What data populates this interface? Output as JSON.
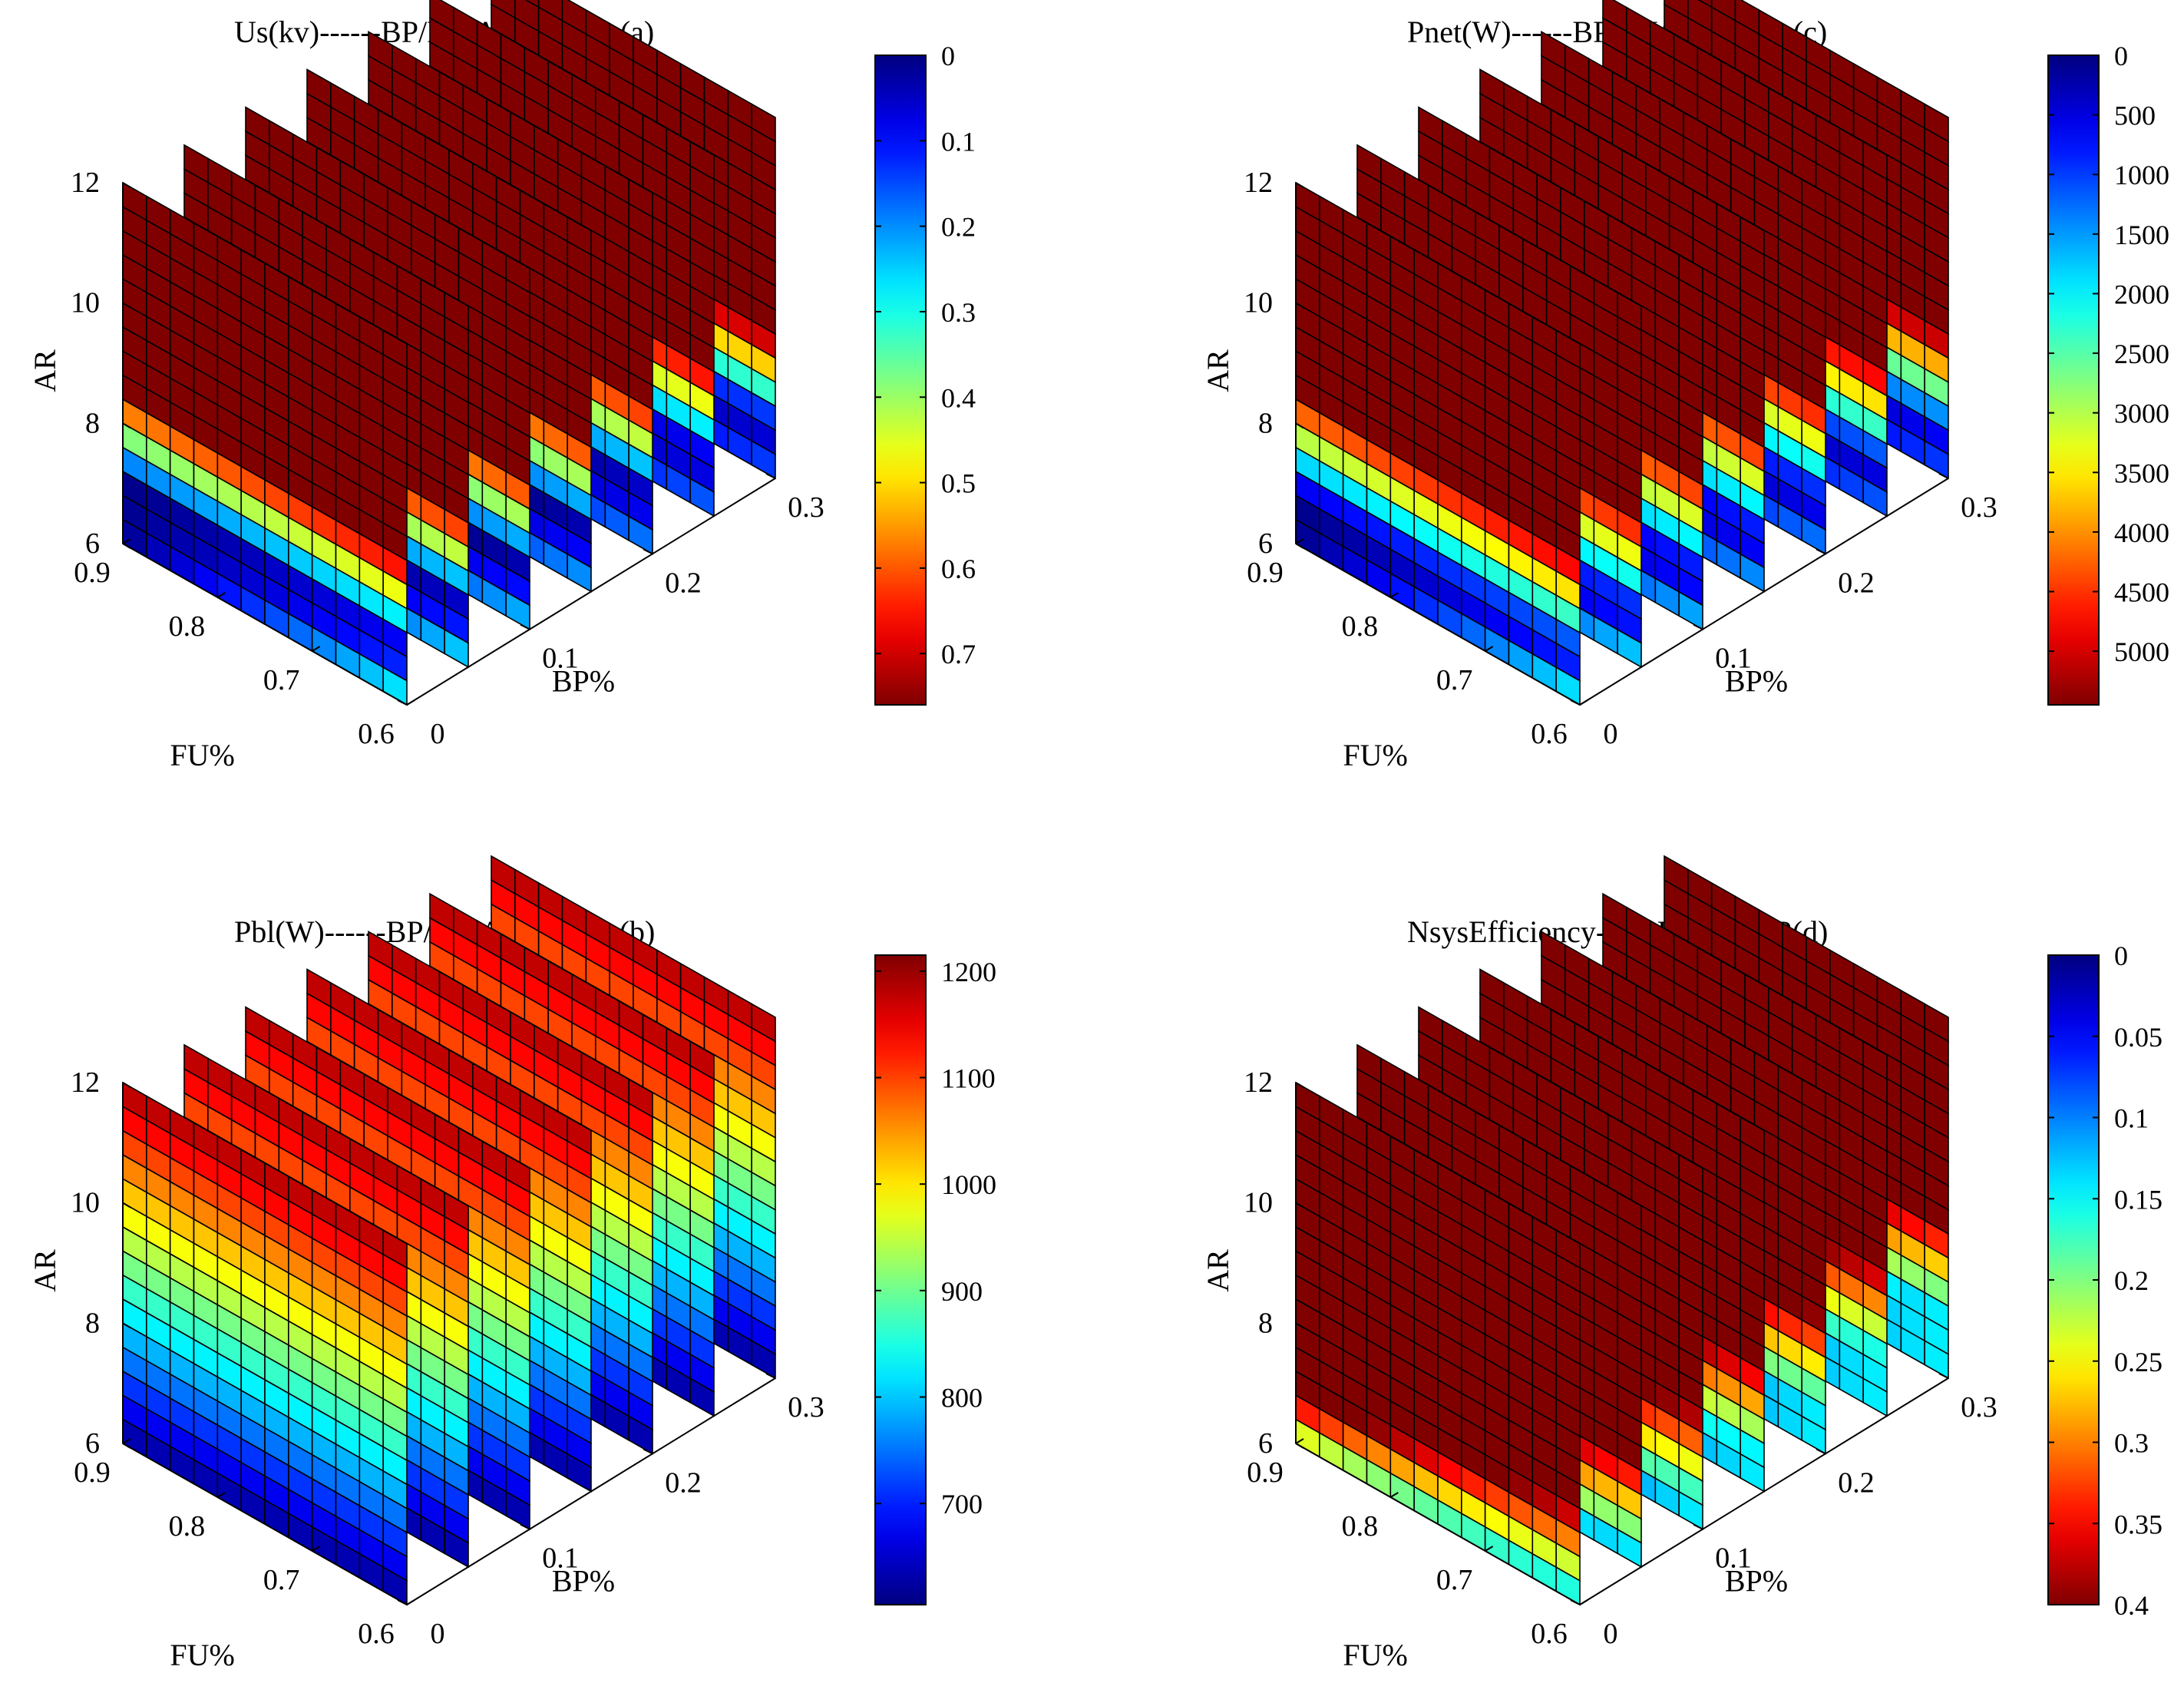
{
  "figure": {
    "panel_order": [
      "a",
      "c",
      "b",
      "d"
    ]
  },
  "chart_data": [
    {
      "id": "a",
      "type": "slice3d",
      "title": "Us(kv)------BP/FU/AR",
      "panel_label": "(a)",
      "xlabel": "FU%",
      "ylabel": "BP%",
      "zlabel": "AR",
      "fu_ticks": [
        "0.9",
        "0.8",
        "0.7",
        "0.6"
      ],
      "bp_ticks": [
        "0",
        "0.1",
        "0.2",
        "0.3"
      ],
      "ar_ticks": [
        "6",
        "8",
        "10",
        "12"
      ],
      "fu_range": [
        0.6,
        0.9
      ],
      "bp_range": [
        0,
        0.3
      ],
      "ar_range": [
        6,
        12
      ],
      "slice_bp_values": [
        0,
        0.05,
        0.1,
        0.15,
        0.2,
        0.25,
        0.3
      ],
      "colorbar_ticks": [
        {
          "value": 0,
          "label": "0"
        },
        {
          "value": 0.1,
          "label": "0.1"
        },
        {
          "value": 0.2,
          "label": "0.2"
        },
        {
          "value": 0.3,
          "label": "0.3"
        },
        {
          "value": 0.4,
          "label": "0.4"
        },
        {
          "value": 0.5,
          "label": "0.5"
        },
        {
          "value": 0.6,
          "label": "0.6"
        },
        {
          "value": 0.7,
          "label": "0.7"
        }
      ],
      "colorbar_range": [
        0,
        0.76
      ],
      "colorbar_reversed": true,
      "model": {
        "kind": "band",
        "peak": 0.75,
        "threshold_ar_low": 7.8,
        "threshold_ar_high": 8.8,
        "fu_influence": 0.5,
        "fade_width": 1.6
      }
    },
    {
      "id": "c",
      "type": "slice3d",
      "title": "Pnet(W)------BP/FU/AR",
      "panel_label": "(c)",
      "xlabel": "FU%",
      "ylabel": "BP%",
      "zlabel": "AR",
      "fu_ticks": [
        "0.9",
        "0.8",
        "0.7",
        "0.6"
      ],
      "bp_ticks": [
        "0",
        "0.1",
        "0.2",
        "0.3"
      ],
      "ar_ticks": [
        "6",
        "8",
        "10",
        "12"
      ],
      "fu_range": [
        0.6,
        0.9
      ],
      "bp_range": [
        0,
        0.3
      ],
      "ar_range": [
        6,
        12
      ],
      "slice_bp_values": [
        0,
        0.05,
        0.1,
        0.15,
        0.2,
        0.25,
        0.3
      ],
      "colorbar_ticks": [
        {
          "value": 0,
          "label": "0"
        },
        {
          "value": 500,
          "label": "500"
        },
        {
          "value": 1000,
          "label": "1000"
        },
        {
          "value": 1500,
          "label": "1500"
        },
        {
          "value": 2000,
          "label": "2000"
        },
        {
          "value": 2500,
          "label": "2500"
        },
        {
          "value": 3000,
          "label": "3000"
        },
        {
          "value": 3500,
          "label": "3500"
        },
        {
          "value": 4000,
          "label": "4000"
        },
        {
          "value": 4500,
          "label": "4500"
        },
        {
          "value": 5000,
          "label": "5000"
        }
      ],
      "colorbar_range": [
        0,
        5450
      ],
      "colorbar_reversed": true,
      "model": {
        "kind": "band",
        "peak": 5400,
        "threshold_ar_low": 7.8,
        "threshold_ar_high": 8.8,
        "fu_influence": 0.5,
        "fade_width": 1.8
      }
    },
    {
      "id": "b",
      "type": "slice3d",
      "title": "Pbl(W)------BP/FU/AR",
      "panel_label": "(b)",
      "xlabel": "FU%",
      "ylabel": "BP%",
      "zlabel": "AR",
      "fu_ticks": [
        "0.9",
        "0.8",
        "0.7",
        "0.6"
      ],
      "bp_ticks": [
        "0",
        "0.1",
        "0.2",
        "0.3"
      ],
      "ar_ticks": [
        "6",
        "8",
        "10",
        "12"
      ],
      "fu_range": [
        0.6,
        0.9
      ],
      "bp_range": [
        0,
        0.3
      ],
      "ar_range": [
        6,
        12
      ],
      "slice_bp_values": [
        0,
        0.05,
        0.1,
        0.15,
        0.2,
        0.25,
        0.3
      ],
      "colorbar_ticks": [
        {
          "value": 700,
          "label": "700"
        },
        {
          "value": 800,
          "label": "800"
        },
        {
          "value": 900,
          "label": "900"
        },
        {
          "value": 1000,
          "label": "1000"
        },
        {
          "value": 1100,
          "label": "1100"
        },
        {
          "value": 1200,
          "label": "1200"
        }
      ],
      "colorbar_range": [
        605,
        1215
      ],
      "colorbar_reversed": false,
      "model": {
        "kind": "linear_ar",
        "min": 615,
        "max": 1195
      }
    },
    {
      "id": "d",
      "type": "slice3d",
      "title": "NsysEfficiency------BP/FU/AR",
      "panel_label": "(d)",
      "xlabel": "FU%",
      "ylabel": "BP%",
      "zlabel": "AR",
      "fu_ticks": [
        "0.9",
        "0.8",
        "0.7",
        "0.6"
      ],
      "bp_ticks": [
        "0",
        "0.1",
        "0.2",
        "0.3"
      ],
      "ar_ticks": [
        "6",
        "8",
        "10",
        "12"
      ],
      "fu_range": [
        0.6,
        0.9
      ],
      "bp_range": [
        0,
        0.3
      ],
      "ar_range": [
        6,
        12
      ],
      "slice_bp_values": [
        0,
        0.05,
        0.1,
        0.15,
        0.2,
        0.25,
        0.3
      ],
      "colorbar_ticks": [
        {
          "value": 0,
          "label": "0"
        },
        {
          "value": 0.05,
          "label": "0.05"
        },
        {
          "value": 0.1,
          "label": "0.1"
        },
        {
          "value": 0.15,
          "label": "0.15"
        },
        {
          "value": 0.2,
          "label": "0.2"
        },
        {
          "value": 0.25,
          "label": "0.25"
        },
        {
          "value": 0.3,
          "label": "0.3"
        },
        {
          "value": 0.35,
          "label": "0.35"
        },
        {
          "value": 0.4,
          "label": "0.4"
        }
      ],
      "colorbar_range": [
        0,
        0.4
      ],
      "colorbar_reversed": true,
      "model": {
        "kind": "efficiency",
        "peak": 0.39,
        "threshold_ar_low": 6.8,
        "threshold_ar_high": 8.6,
        "fu_influence": 0.5,
        "fade_width": 1.5
      }
    }
  ]
}
